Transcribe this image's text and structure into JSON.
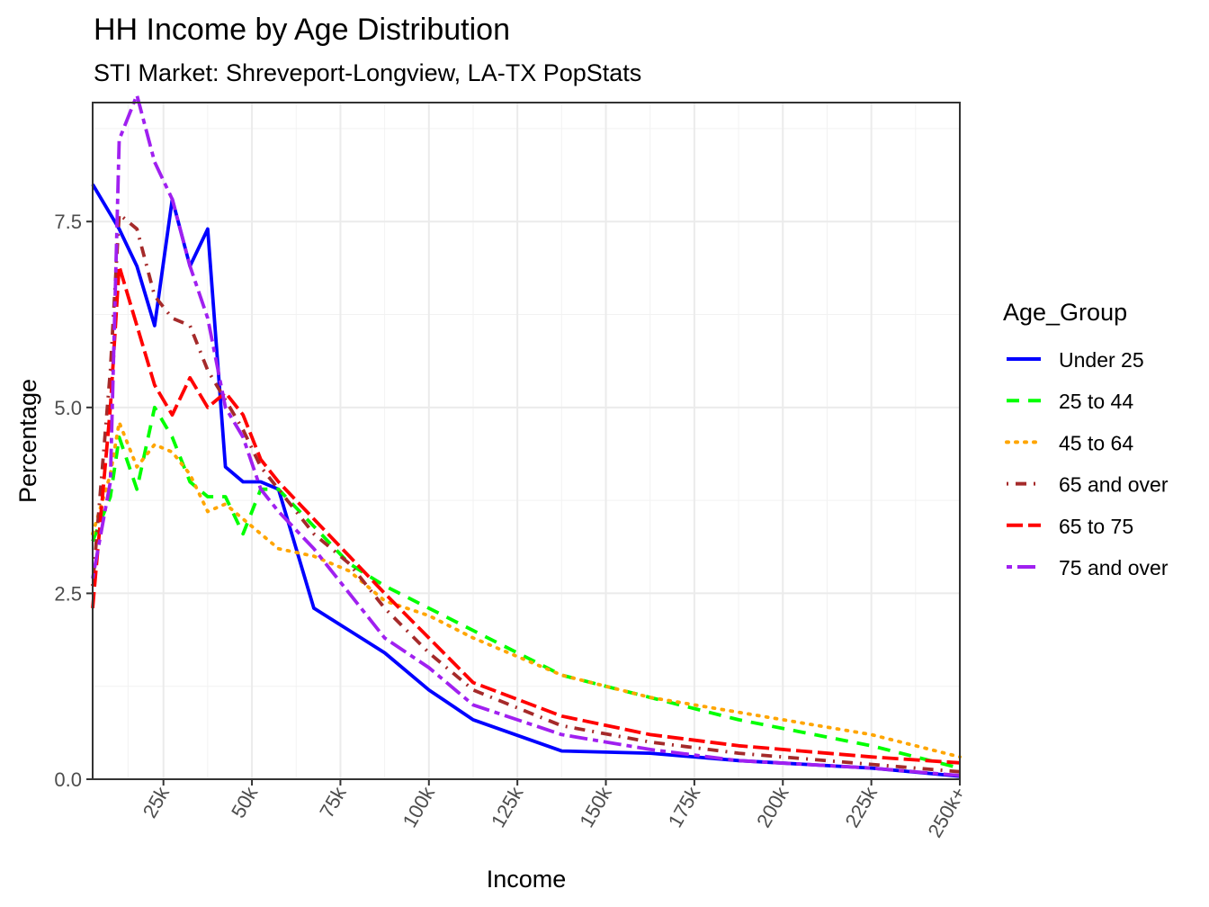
{
  "chart_data": {
    "type": "line",
    "title": "HH Income by Age Distribution",
    "subtitle": "STI Market: Shreveport-Longview, LA-TX PopStats",
    "xlabel": "Income",
    "ylabel": "Percentage",
    "xlim": [
      5000,
      250000
    ],
    "ylim": [
      0,
      9.1
    ],
    "x_ticks": [
      {
        "value": 25000,
        "label": "25k"
      },
      {
        "value": 50000,
        "label": "50k"
      },
      {
        "value": 75000,
        "label": "75k"
      },
      {
        "value": 100000,
        "label": "100k"
      },
      {
        "value": 125000,
        "label": "125k"
      },
      {
        "value": 150000,
        "label": "150k"
      },
      {
        "value": 175000,
        "label": "175k"
      },
      {
        "value": 200000,
        "label": "200k"
      },
      {
        "value": 225000,
        "label": "225k"
      },
      {
        "value": 250000,
        "label": "250k+"
      }
    ],
    "y_ticks": [
      {
        "value": 0,
        "label": "0.0"
      },
      {
        "value": 2.5,
        "label": "2.5"
      },
      {
        "value": 5,
        "label": "5.0"
      },
      {
        "value": 7.5,
        "label": "7.5"
      }
    ],
    "grid": true,
    "legend": {
      "title": "Age_Group",
      "position": "right"
    },
    "series": [
      {
        "name": "Under 25",
        "color": "#0000ff",
        "dash": "solid",
        "points": [
          [
            5000,
            8.0
          ],
          [
            12500,
            7.4
          ],
          [
            17500,
            6.9
          ],
          [
            22500,
            6.1
          ],
          [
            27500,
            7.8
          ],
          [
            32500,
            6.9
          ],
          [
            37500,
            7.4
          ],
          [
            42500,
            4.2
          ],
          [
            47500,
            4.0
          ],
          [
            52500,
            4.0
          ],
          [
            57500,
            3.9
          ],
          [
            67500,
            2.3
          ],
          [
            77500,
            2.0
          ],
          [
            87500,
            1.7
          ],
          [
            100000,
            1.2
          ],
          [
            112500,
            0.8
          ],
          [
            137500,
            0.38
          ],
          [
            162500,
            0.35
          ],
          [
            187500,
            0.25
          ],
          [
            225000,
            0.15
          ],
          [
            250000,
            0.04
          ]
        ]
      },
      {
        "name": "25 to 44",
        "color": "#00ff00",
        "dash": "dashed",
        "points": [
          [
            5000,
            3.2
          ],
          [
            10000,
            3.8
          ],
          [
            12500,
            4.6
          ],
          [
            17500,
            3.9
          ],
          [
            22500,
            5.0
          ],
          [
            27500,
            4.6
          ],
          [
            32500,
            4.0
          ],
          [
            37500,
            3.8
          ],
          [
            42500,
            3.8
          ],
          [
            47500,
            3.3
          ],
          [
            52500,
            3.9
          ],
          [
            57500,
            3.9
          ],
          [
            67500,
            3.4
          ],
          [
            77500,
            2.9
          ],
          [
            87500,
            2.6
          ],
          [
            100000,
            2.3
          ],
          [
            112500,
            2.0
          ],
          [
            137500,
            1.4
          ],
          [
            162500,
            1.1
          ],
          [
            187500,
            0.8
          ],
          [
            225000,
            0.45
          ],
          [
            250000,
            0.15
          ]
        ]
      },
      {
        "name": "45 to 64",
        "color": "#ffa500",
        "dash": "dotted",
        "points": [
          [
            5000,
            3.3
          ],
          [
            10000,
            4.1
          ],
          [
            12500,
            4.8
          ],
          [
            17500,
            4.2
          ],
          [
            22500,
            4.5
          ],
          [
            27500,
            4.4
          ],
          [
            32500,
            4.1
          ],
          [
            37500,
            3.6
          ],
          [
            42500,
            3.7
          ],
          [
            47500,
            3.5
          ],
          [
            52500,
            3.3
          ],
          [
            57500,
            3.1
          ],
          [
            67500,
            3.0
          ],
          [
            77500,
            2.8
          ],
          [
            87500,
            2.4
          ],
          [
            100000,
            2.2
          ],
          [
            112500,
            1.9
          ],
          [
            137500,
            1.4
          ],
          [
            162500,
            1.1
          ],
          [
            187500,
            0.9
          ],
          [
            225000,
            0.6
          ],
          [
            250000,
            0.3
          ]
        ]
      },
      {
        "name": "65 and over",
        "color": "#a52a2a",
        "dash": "dotdash",
        "points": [
          [
            5000,
            2.6
          ],
          [
            10000,
            5.5
          ],
          [
            12500,
            7.6
          ],
          [
            17500,
            7.4
          ],
          [
            22500,
            6.5
          ],
          [
            27500,
            6.2
          ],
          [
            32500,
            6.1
          ],
          [
            37500,
            5.5
          ],
          [
            42500,
            5.1
          ],
          [
            47500,
            4.7
          ],
          [
            52500,
            4.2
          ],
          [
            57500,
            3.9
          ],
          [
            67500,
            3.3
          ],
          [
            77500,
            2.9
          ],
          [
            87500,
            2.3
          ],
          [
            100000,
            1.7
          ],
          [
            112500,
            1.2
          ],
          [
            137500,
            0.72
          ],
          [
            162500,
            0.5
          ],
          [
            187500,
            0.35
          ],
          [
            225000,
            0.2
          ],
          [
            250000,
            0.1
          ]
        ]
      },
      {
        "name": "65 to 75",
        "color": "#ff0000",
        "dash": "longdash",
        "points": [
          [
            5000,
            2.3
          ],
          [
            10000,
            5.0
          ],
          [
            12500,
            6.9
          ],
          [
            17500,
            6.1
          ],
          [
            22500,
            5.3
          ],
          [
            27500,
            4.9
          ],
          [
            32500,
            5.4
          ],
          [
            37500,
            5.0
          ],
          [
            42500,
            5.2
          ],
          [
            47500,
            4.9
          ],
          [
            52500,
            4.3
          ],
          [
            57500,
            4.0
          ],
          [
            67500,
            3.5
          ],
          [
            77500,
            3.0
          ],
          [
            87500,
            2.5
          ],
          [
            100000,
            1.9
          ],
          [
            112500,
            1.3
          ],
          [
            137500,
            0.85
          ],
          [
            162500,
            0.6
          ],
          [
            187500,
            0.45
          ],
          [
            225000,
            0.3
          ],
          [
            250000,
            0.22
          ]
        ]
      },
      {
        "name": "75 and over",
        "color": "#a020f0",
        "dash": "twodash",
        "points": [
          [
            5000,
            2.7
          ],
          [
            10000,
            4.0
          ],
          [
            12500,
            8.6
          ],
          [
            17500,
            9.2
          ],
          [
            22500,
            8.3
          ],
          [
            27500,
            7.8
          ],
          [
            32500,
            6.9
          ],
          [
            37500,
            6.2
          ],
          [
            42500,
            5.0
          ],
          [
            47500,
            4.6
          ],
          [
            52500,
            3.9
          ],
          [
            57500,
            3.6
          ],
          [
            67500,
            3.1
          ],
          [
            77500,
            2.5
          ],
          [
            87500,
            1.9
          ],
          [
            100000,
            1.5
          ],
          [
            112500,
            1.0
          ],
          [
            137500,
            0.6
          ],
          [
            162500,
            0.4
          ],
          [
            187500,
            0.25
          ],
          [
            225000,
            0.15
          ],
          [
            250000,
            0.05
          ]
        ]
      }
    ]
  }
}
